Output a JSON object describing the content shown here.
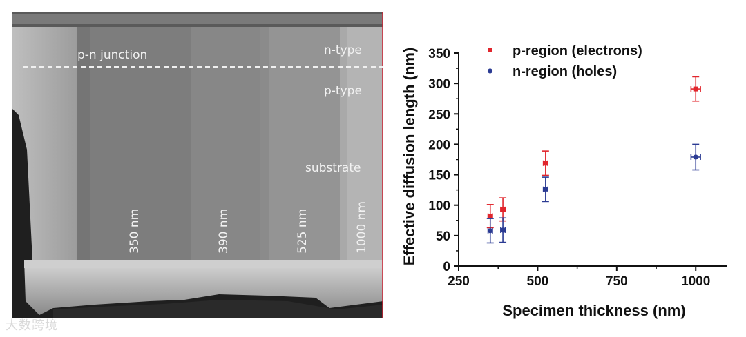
{
  "sem_image": {
    "labels": {
      "junction": "p-n junction",
      "n_type": "n-type",
      "p_type": "p-type",
      "substrate": "substrate"
    },
    "thickness_labels": [
      "350 nm",
      "390 nm",
      "525 nm",
      "1000 nm"
    ]
  },
  "watermark": "大数跨境",
  "colors": {
    "p_region": "#e1262d",
    "n_region": "#2b3b93"
  },
  "chart_data": {
    "type": "scatter",
    "xlabel": "Specimen thickness (nm)",
    "ylabel": "Effective diffusion length (nm)",
    "xlim": [
      250,
      1100
    ],
    "ylim": [
      0,
      350
    ],
    "xticks": [
      250,
      500,
      750,
      1000
    ],
    "yticks": [
      0,
      50,
      100,
      150,
      200,
      250,
      300,
      350
    ],
    "legend_position": "top-left",
    "grid": false,
    "series": [
      {
        "name": "p-region (electrons)",
        "marker": "square",
        "color": "#e1262d",
        "points": [
          {
            "x": 350,
            "y": 82,
            "yerr": 19,
            "xerr": 7
          },
          {
            "x": 390,
            "y": 93,
            "yerr": 19,
            "xerr": 7
          },
          {
            "x": 525,
            "y": 169,
            "yerr": 20,
            "xerr": 7
          },
          {
            "x": 1000,
            "y": 291,
            "yerr": 20,
            "xerr": 15
          }
        ]
      },
      {
        "name": "n-region (holes)",
        "marker": "circle",
        "color": "#2b3b93",
        "points": [
          {
            "x": 350,
            "y": 58,
            "yerr": 20,
            "xerr": 7
          },
          {
            "x": 390,
            "y": 59,
            "yerr": 20,
            "xerr": 7
          },
          {
            "x": 525,
            "y": 126,
            "yerr": 20,
            "xerr": 7
          },
          {
            "x": 1000,
            "y": 179,
            "yerr": 21,
            "xerr": 15
          }
        ]
      }
    ]
  }
}
